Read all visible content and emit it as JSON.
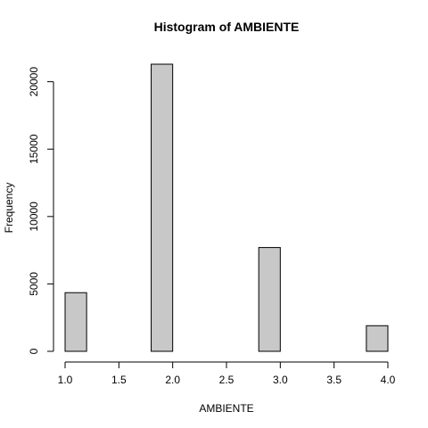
{
  "chart_data": {
    "type": "bar",
    "title": "Histogram of AMBIENTE",
    "xlabel": "AMBIENTE",
    "ylabel": "Frequency",
    "bins": [
      {
        "x0": 1.0,
        "x1": 1.2,
        "count": 4350
      },
      {
        "x0": 1.2,
        "x1": 1.4,
        "count": 0
      },
      {
        "x0": 1.4,
        "x1": 1.6,
        "count": 0
      },
      {
        "x0": 1.6,
        "x1": 1.8,
        "count": 0
      },
      {
        "x0": 1.8,
        "x1": 2.0,
        "count": 21300
      },
      {
        "x0": 2.0,
        "x1": 2.2,
        "count": 0
      },
      {
        "x0": 2.2,
        "x1": 2.4,
        "count": 0
      },
      {
        "x0": 2.4,
        "x1": 2.6,
        "count": 0
      },
      {
        "x0": 2.6,
        "x1": 2.8,
        "count": 0
      },
      {
        "x0": 2.8,
        "x1": 3.0,
        "count": 7700
      },
      {
        "x0": 3.0,
        "x1": 3.2,
        "count": 0
      },
      {
        "x0": 3.2,
        "x1": 3.4,
        "count": 0
      },
      {
        "x0": 3.4,
        "x1": 3.6,
        "count": 0
      },
      {
        "x0": 3.6,
        "x1": 3.8,
        "count": 0
      },
      {
        "x0": 3.8,
        "x1": 4.0,
        "count": 1900
      }
    ],
    "xlim": [
      1.0,
      4.0
    ],
    "ylim": [
      0,
      21300
    ],
    "x_ticks": [
      1.0,
      1.5,
      2.0,
      2.5,
      3.0,
      3.5,
      4.0
    ],
    "x_tick_labels": [
      "1.0",
      "1.5",
      "2.0",
      "2.5",
      "3.0",
      "3.5",
      "4.0"
    ],
    "y_ticks": [
      0,
      5000,
      10000,
      15000,
      20000
    ],
    "y_tick_labels": [
      "0",
      "5000",
      "10000",
      "15000",
      "20000"
    ],
    "bar_fill": "#c8c8c8",
    "bar_stroke": "#000000",
    "grid": false,
    "legend": "none"
  }
}
